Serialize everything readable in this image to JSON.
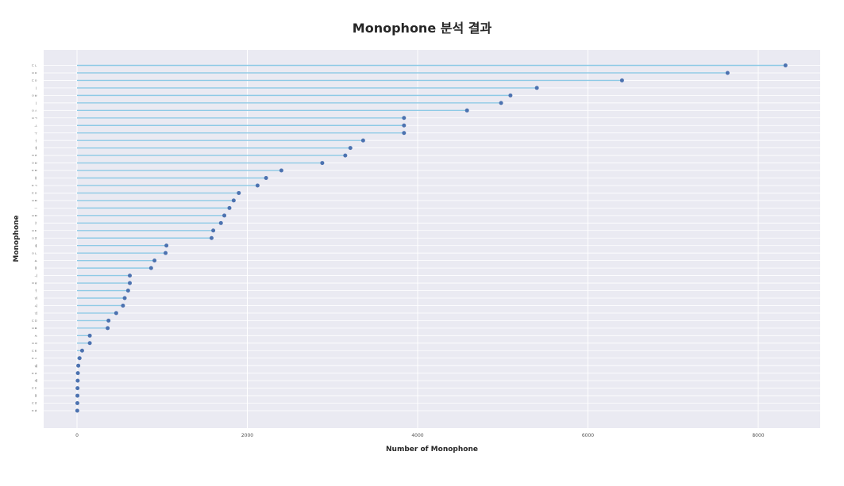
{
  "chart_data": {
    "type": "lollipop",
    "title": "Monophone 분석 결과",
    "xlabel": "Number of Monophone",
    "ylabel": "Monophone",
    "xlim": [
      -200,
      8850
    ],
    "xticks": [
      0,
      2000,
      4000,
      6000,
      8000
    ],
    "grid": true,
    "colors": {
      "stem": "#8ecae6",
      "marker": "#4c72b0",
      "plot_bg": "#eaeaf2",
      "grid": "#ffffff"
    },
    "categories": [
      "ㄷㄴ",
      "ㅇㅇ",
      "ㄷㅇ",
      "ㅣ",
      "ㅇㅂ",
      "ㅣ",
      "ㅇㅅ",
      "ㅇㄱ",
      "ㅗ",
      "ㅜ",
      "ㅓ",
      "ㅔ",
      "ㅇㅈ",
      "ㅇㅂ",
      "ㄷㅂ",
      "ㅐ",
      "ㄷㄱ",
      "ㄷㅇ",
      "ㅇㅁ",
      "ㅡ",
      "ㅇㅁ",
      "ㅑ",
      "ㅇㄷ",
      "ㅇㅊ",
      "ㅖ",
      "ㅇㄴ",
      "ㅛ",
      "ㅒ",
      "ㅢ",
      "ㅇㅎ",
      "ㅕ",
      "ㅝ",
      "ㅚ",
      "ㅟ",
      "ㄷㅁ",
      "ㅇㅍ",
      "ㅆ",
      "ㅇㅋ",
      "ㄷㅌ",
      "ㄷㅅ",
      "ㅞ",
      "ㄷㅈ",
      "ㅙ",
      "ㄷㄷ",
      "ㅒ",
      "ㄷㅎ",
      "ㄷㅊ"
    ],
    "values": [
      8320,
      7640,
      6400,
      5400,
      5090,
      4980,
      4580,
      3840,
      3840,
      3840,
      3360,
      3210,
      3150,
      2880,
      2400,
      2220,
      2120,
      1900,
      1840,
      1790,
      1730,
      1690,
      1600,
      1580,
      1050,
      1040,
      910,
      870,
      620,
      620,
      600,
      560,
      540,
      460,
      370,
      360,
      150,
      150,
      60,
      30,
      15,
      10,
      8,
      6,
      5,
      4,
      3
    ]
  }
}
